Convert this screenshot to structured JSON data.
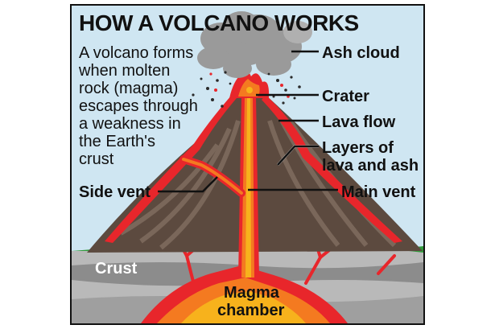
{
  "title": "HOW A VOLCANO WORKS",
  "description": [
    "A volcano forms",
    "when molten",
    "rock (magma)",
    "escapes through",
    "a weakness in",
    "the Earth's",
    "crust"
  ],
  "labels": {
    "ash_cloud": "Ash cloud",
    "crater": "Crater",
    "lava_flow": "Lava flow",
    "layers_line1": "Layers of",
    "layers_line2": "lava and ash",
    "side_vent": "Side vent",
    "main_vent": "Main vent",
    "crust": "Crust",
    "magma_line1": "Magma",
    "magma_line2": "chamber"
  },
  "colors": {
    "sky": "#cfe6f2",
    "cone": "#5c4a3f",
    "cone_stripe": "#7a675a",
    "lava_red": "#e8262b",
    "lava_orange": "#f47a20",
    "lava_yellow": "#f7b21c",
    "crust_dark": "#8c8c8c",
    "crust_light": "#b9b9b9",
    "grass": "#2f9a3a",
    "smoke": "#9a9a9a"
  }
}
